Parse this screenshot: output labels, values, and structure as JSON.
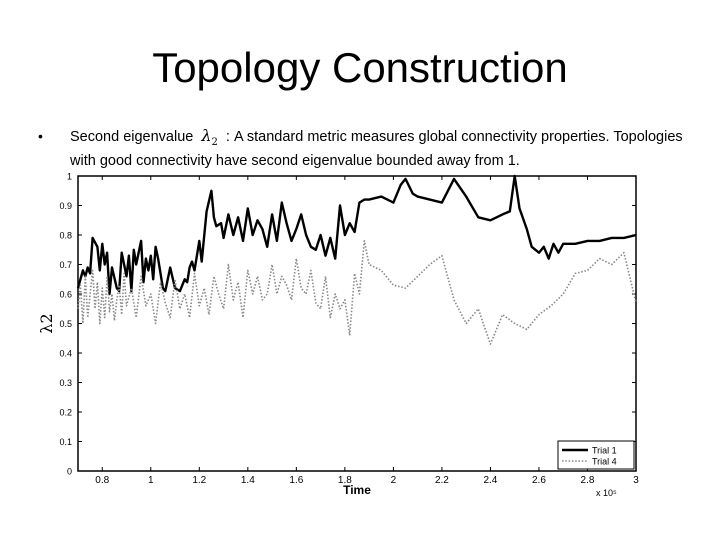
{
  "slide": {
    "title": "Topology Construction",
    "bullet_symbol": "•",
    "bullet_text_before": "Second eigenvalue ",
    "lambda_symbol": "λ",
    "lambda_subscript": "2",
    "bullet_text_after": " : A standard metric measures global connectivity properties. Topologies with good connectivity have second eigenvalue  bounded away from 1."
  },
  "chart_data": {
    "type": "line",
    "title": "",
    "xlabel": "Time",
    "ylabel": "λ2",
    "x_scale_note": "x 10⁵",
    "xlim": [
      0.7,
      3.0
    ],
    "ylim": [
      0,
      1
    ],
    "x_ticks": [
      "0.8",
      "1",
      "1.2",
      "1.4",
      "1.6",
      "1.8",
      "2",
      "2.2",
      "2.4",
      "2.6",
      "2.8",
      "3"
    ],
    "x_tick_values": [
      0.8,
      1.0,
      1.2,
      1.4,
      1.6,
      1.8,
      2.0,
      2.2,
      2.4,
      2.6,
      2.8,
      3.0
    ],
    "y_ticks": [
      "0",
      "0.1",
      "0.2",
      "0.3",
      "0.4",
      "0.5",
      "0.6",
      "0.7",
      "0.8",
      "0.9",
      "1"
    ],
    "y_tick_values": [
      0,
      0.1,
      0.2,
      0.3,
      0.4,
      0.5,
      0.6,
      0.7,
      0.8,
      0.9,
      1.0
    ],
    "grid": false,
    "legend_position": "bottom-right",
    "series": [
      {
        "name": "Trial 1",
        "style": "solid",
        "color": "#000000",
        "x": [
          0.7,
          0.72,
          0.73,
          0.74,
          0.75,
          0.76,
          0.78,
          0.79,
          0.8,
          0.81,
          0.82,
          0.83,
          0.84,
          0.86,
          0.87,
          0.88,
          0.9,
          0.91,
          0.92,
          0.93,
          0.94,
          0.96,
          0.97,
          0.98,
          0.99,
          1.0,
          1.01,
          1.02,
          1.03,
          1.05,
          1.06,
          1.08,
          1.1,
          1.12,
          1.14,
          1.15,
          1.16,
          1.17,
          1.18,
          1.2,
          1.21,
          1.23,
          1.25,
          1.26,
          1.27,
          1.29,
          1.3,
          1.32,
          1.34,
          1.36,
          1.38,
          1.4,
          1.42,
          1.44,
          1.46,
          1.48,
          1.5,
          1.52,
          1.54,
          1.56,
          1.58,
          1.6,
          1.62,
          1.64,
          1.66,
          1.68,
          1.7,
          1.72,
          1.74,
          1.76,
          1.78,
          1.8,
          1.82,
          1.84,
          1.86,
          1.88,
          1.9,
          1.95,
          2.0,
          2.03,
          2.05,
          2.08,
          2.1,
          2.15,
          2.2,
          2.25,
          2.3,
          2.35,
          2.4,
          2.45,
          2.48,
          2.5,
          2.52,
          2.55,
          2.57,
          2.6,
          2.62,
          2.64,
          2.66,
          2.68,
          2.7,
          2.75,
          2.8,
          2.85,
          2.9,
          2.95,
          3.0
        ],
        "y": [
          0.62,
          0.68,
          0.66,
          0.69,
          0.67,
          0.79,
          0.76,
          0.68,
          0.77,
          0.7,
          0.74,
          0.6,
          0.69,
          0.62,
          0.61,
          0.74,
          0.66,
          0.73,
          0.61,
          0.75,
          0.7,
          0.78,
          0.64,
          0.72,
          0.68,
          0.73,
          0.65,
          0.76,
          0.72,
          0.62,
          0.61,
          0.69,
          0.62,
          0.61,
          0.65,
          0.64,
          0.69,
          0.71,
          0.68,
          0.78,
          0.71,
          0.88,
          0.95,
          0.86,
          0.83,
          0.84,
          0.79,
          0.87,
          0.8,
          0.86,
          0.78,
          0.89,
          0.8,
          0.85,
          0.82,
          0.76,
          0.87,
          0.78,
          0.91,
          0.84,
          0.78,
          0.82,
          0.87,
          0.8,
          0.76,
          0.75,
          0.8,
          0.73,
          0.79,
          0.72,
          0.9,
          0.8,
          0.84,
          0.81,
          0.91,
          0.92,
          0.92,
          0.93,
          0.91,
          0.97,
          0.99,
          0.94,
          0.93,
          0.92,
          0.91,
          0.99,
          0.93,
          0.86,
          0.85,
          0.87,
          0.88,
          1.0,
          0.89,
          0.82,
          0.76,
          0.74,
          0.76,
          0.72,
          0.77,
          0.74,
          0.77,
          0.77,
          0.78,
          0.78,
          0.79,
          0.79,
          0.8
        ]
      },
      {
        "name": "Trial 4",
        "style": "dotted",
        "color": "#888888",
        "x": [
          0.7,
          0.71,
          0.72,
          0.73,
          0.74,
          0.75,
          0.76,
          0.77,
          0.78,
          0.79,
          0.8,
          0.81,
          0.82,
          0.83,
          0.84,
          0.85,
          0.86,
          0.87,
          0.88,
          0.89,
          0.9,
          0.92,
          0.94,
          0.96,
          0.98,
          1.0,
          1.02,
          1.04,
          1.06,
          1.08,
          1.1,
          1.12,
          1.14,
          1.16,
          1.18,
          1.2,
          1.22,
          1.24,
          1.26,
          1.28,
          1.3,
          1.32,
          1.34,
          1.36,
          1.38,
          1.4,
          1.42,
          1.44,
          1.46,
          1.48,
          1.5,
          1.52,
          1.54,
          1.56,
          1.58,
          1.6,
          1.62,
          1.64,
          1.66,
          1.68,
          1.7,
          1.72,
          1.74,
          1.76,
          1.78,
          1.8,
          1.82,
          1.84,
          1.86,
          1.88,
          1.9,
          1.95,
          2.0,
          2.05,
          2.1,
          2.15,
          2.2,
          2.25,
          2.3,
          2.35,
          2.4,
          2.45,
          2.5,
          2.55,
          2.6,
          2.65,
          2.7,
          2.75,
          2.8,
          2.85,
          2.9,
          2.95,
          3.0
        ],
        "y": [
          0.55,
          0.63,
          0.5,
          0.66,
          0.52,
          0.6,
          0.68,
          0.55,
          0.64,
          0.5,
          0.62,
          0.52,
          0.66,
          0.54,
          0.6,
          0.51,
          0.58,
          0.63,
          0.53,
          0.67,
          0.56,
          0.62,
          0.52,
          0.66,
          0.56,
          0.6,
          0.5,
          0.64,
          0.57,
          0.52,
          0.65,
          0.55,
          0.6,
          0.52,
          0.67,
          0.56,
          0.62,
          0.53,
          0.66,
          0.6,
          0.55,
          0.7,
          0.58,
          0.64,
          0.52,
          0.68,
          0.6,
          0.66,
          0.58,
          0.6,
          0.7,
          0.6,
          0.66,
          0.63,
          0.58,
          0.72,
          0.62,
          0.6,
          0.68,
          0.57,
          0.55,
          0.66,
          0.52,
          0.6,
          0.55,
          0.58,
          0.46,
          0.67,
          0.6,
          0.78,
          0.7,
          0.68,
          0.63,
          0.62,
          0.66,
          0.7,
          0.73,
          0.58,
          0.5,
          0.55,
          0.43,
          0.53,
          0.5,
          0.48,
          0.53,
          0.56,
          0.6,
          0.67,
          0.68,
          0.72,
          0.7,
          0.74,
          0.57
        ]
      }
    ]
  }
}
